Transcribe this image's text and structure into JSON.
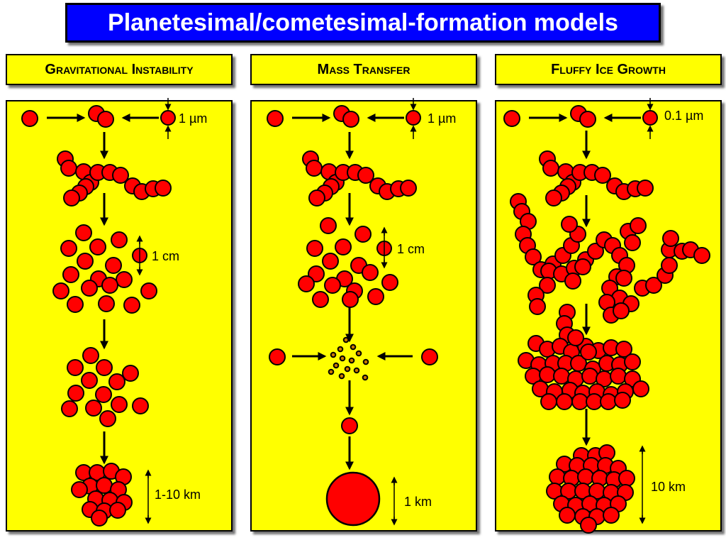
{
  "title": "Planetesimal/cometesimal-formation models",
  "models": [
    {
      "header": "Gravitational Instability",
      "labels": {
        "grain": "1 µm",
        "pebble": "1 cm",
        "body": "1-10 km"
      }
    },
    {
      "header": "Mass Transfer",
      "labels": {
        "grain": "1 µm",
        "pebble": "1 cm",
        "body": "1 km"
      }
    },
    {
      "header": "Fluffy Ice Growth",
      "labels": {
        "grain": "0.1 µm",
        "body": "10 km"
      }
    }
  ],
  "colors": {
    "title_bg": "#0000ff",
    "panel_bg": "#ffff00",
    "particle": "#ff0000",
    "small_particle": "#c87800"
  }
}
